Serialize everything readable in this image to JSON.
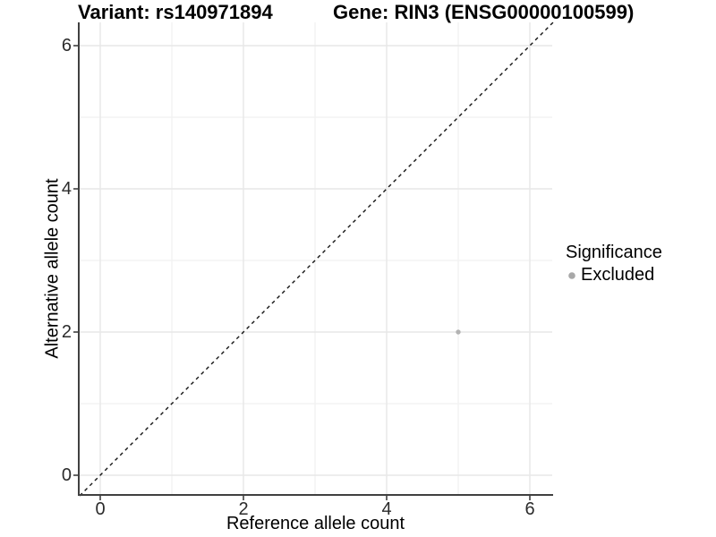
{
  "chart_data": {
    "type": "scatter",
    "title_left": "Variant: rs140971894",
    "title_right": "Gene: RIN3 (ENSG00000100599)",
    "xlabel": "Reference allele count",
    "ylabel": "Alternative allele count",
    "xlim": [
      -0.3,
      6.3
    ],
    "ylim": [
      -0.3,
      6.3
    ],
    "xticks": [
      "0",
      "2",
      "4",
      "6"
    ],
    "yticks": [
      "0",
      "2",
      "4",
      "6"
    ],
    "grid": "major and minor gridlines, white background",
    "colors": {
      "gridline_major": "#e7e7e7",
      "gridline_minor": "#f1f1f1",
      "axis_line": "#404040",
      "point": "#b3b3b3"
    },
    "series": [
      {
        "name": "Excluded",
        "color": "#b3b3b3",
        "points": [
          {
            "x": 5,
            "y": 2
          }
        ]
      }
    ],
    "reference_line": {
      "style": "dashed",
      "slope": 1,
      "intercept": 0,
      "color": "#141414",
      "description": "identity line y = x"
    },
    "legend": {
      "title": "Significance",
      "position": "right",
      "entries": [
        {
          "label": "Excluded",
          "color": "#a8a8a8"
        }
      ]
    }
  }
}
